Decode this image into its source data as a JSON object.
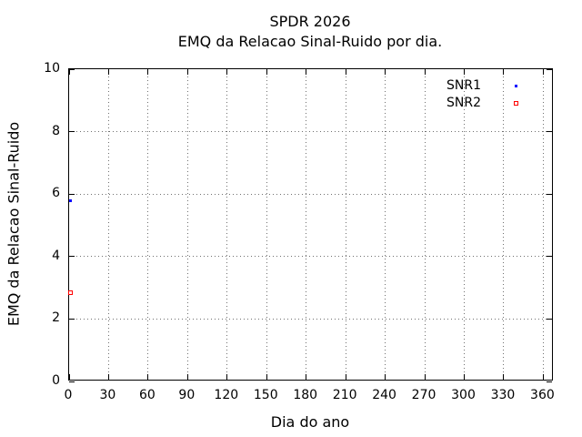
{
  "chart_data": {
    "type": "scatter",
    "title_line1": "SPDR 2026",
    "title_line2": "EMQ da Relacao Sinal-Ruido por dia.",
    "xlabel": "Dia do ano",
    "ylabel": "EMQ da Relacao Sinal-Ruido",
    "xlim": [
      0,
      368
    ],
    "ylim": [
      0,
      10
    ],
    "x_ticks": [
      0,
      30,
      60,
      90,
      120,
      150,
      180,
      210,
      240,
      270,
      300,
      330,
      360
    ],
    "y_ticks": [
      0,
      2,
      4,
      6,
      8,
      10
    ],
    "grid": "dotted",
    "legend_position": "top-right-inside",
    "series": [
      {
        "name": "SNR1",
        "color": "#0000ff",
        "marker": "filled-square",
        "points": [
          {
            "x": 1,
            "y": 5.8
          }
        ]
      },
      {
        "name": "SNR2",
        "color": "#ff0000",
        "marker": "open-square",
        "points": [
          {
            "x": 1,
            "y": 2.85
          }
        ]
      }
    ]
  },
  "colors": {
    "background": "#ffffff",
    "axis": "#000000",
    "grid_dots": "#707070",
    "text": "#000000",
    "snr1": "#0000ff",
    "snr2": "#ff0000"
  }
}
